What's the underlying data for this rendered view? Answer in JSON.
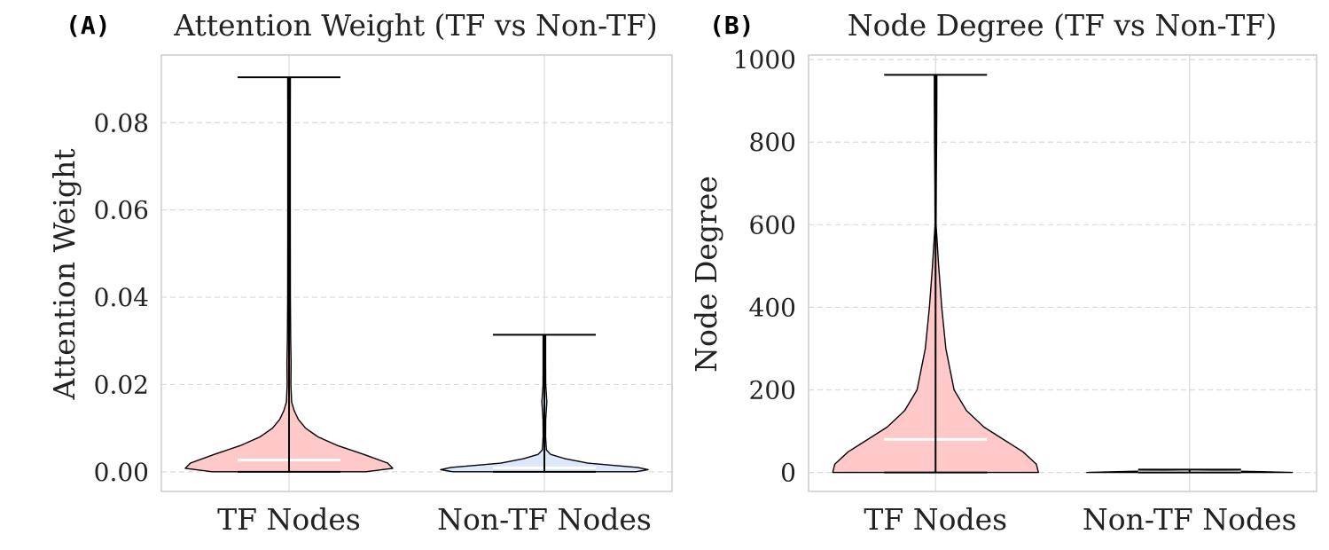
{
  "colors": {
    "tf_fill": "#ffc9c9",
    "non_tf_fill": "#dce9fb",
    "median": "#ffffff",
    "stroke": "#000000",
    "grid": "#d9d9d9",
    "frame": "#cccccc",
    "text": "#222222"
  },
  "chart_data": [
    {
      "panel_label": "(A)",
      "type": "violin",
      "title": "Attention Weight (TF vs Non-TF)",
      "xlabel": "",
      "ylabel": "Attention Weight",
      "categories": [
        "TF Nodes",
        "Non-TF Nodes"
      ],
      "ylim": [
        -0.0045,
        0.0955
      ],
      "yticks": [
        0.0,
        0.02,
        0.04,
        0.06,
        0.08
      ],
      "ytick_labels": [
        "0.00",
        "0.02",
        "0.04",
        "0.06",
        "0.08"
      ],
      "grid": true,
      "series": [
        {
          "name": "TF Nodes",
          "min": 0.0,
          "max": 0.0904,
          "median": 0.0027,
          "density": [
            [
              0.0,
              0.74
            ],
            [
              0.0008,
              1.0
            ],
            [
              0.002,
              0.95
            ],
            [
              0.004,
              0.72
            ],
            [
              0.006,
              0.47
            ],
            [
              0.008,
              0.28
            ],
            [
              0.01,
              0.16
            ],
            [
              0.012,
              0.09
            ],
            [
              0.014,
              0.05
            ],
            [
              0.016,
              0.025
            ],
            [
              0.02,
              0.018
            ],
            [
              0.025,
              0.02
            ],
            [
              0.03,
              0.016
            ],
            [
              0.04,
              0.013
            ],
            [
              0.06,
              0.012
            ],
            [
              0.08,
              0.012
            ],
            [
              0.0904,
              0.013
            ]
          ]
        },
        {
          "name": "Non-TF Nodes",
          "min": 0.0,
          "max": 0.0314,
          "median": 0.0009,
          "density": [
            [
              0.0,
              0.88
            ],
            [
              0.0005,
              1.0
            ],
            [
              0.001,
              0.9
            ],
            [
              0.0015,
              0.65
            ],
            [
              0.002,
              0.42
            ],
            [
              0.003,
              0.2
            ],
            [
              0.004,
              0.06
            ],
            [
              0.005,
              0.02
            ],
            [
              0.008,
              0.012
            ],
            [
              0.012,
              0.013
            ],
            [
              0.016,
              0.024
            ],
            [
              0.02,
              0.013
            ],
            [
              0.025,
              0.012
            ],
            [
              0.0314,
              0.012
            ]
          ]
        }
      ]
    },
    {
      "panel_label": "(B)",
      "type": "violin",
      "title": "Node Degree (TF vs Non-TF)",
      "xlabel": "",
      "ylabel": "Node Degree",
      "categories": [
        "TF Nodes",
        "Non-TF Nodes"
      ],
      "ylim": [
        -46,
        1011
      ],
      "yticks": [
        0,
        200,
        400,
        600,
        800,
        1000
      ],
      "ytick_labels": [
        "0",
        "200",
        "400",
        "600",
        "800",
        "1000"
      ],
      "grid": true,
      "series": [
        {
          "name": "TF Nodes",
          "min": 0,
          "max": 963,
          "median": 80,
          "density": [
            [
              0,
              1.0
            ],
            [
              20,
              0.98
            ],
            [
              50,
              0.85
            ],
            [
              80,
              0.66
            ],
            [
              110,
              0.47
            ],
            [
              150,
              0.3
            ],
            [
              200,
              0.18
            ],
            [
              300,
              0.1
            ],
            [
              400,
              0.06
            ],
            [
              500,
              0.03
            ],
            [
              560,
              0.015
            ],
            [
              600,
              0.005
            ],
            [
              700,
              0.007
            ],
            [
              800,
              0.01
            ],
            [
              900,
              0.012
            ],
            [
              963,
              0.012
            ]
          ]
        },
        {
          "name": "Non-TF Nodes",
          "min": 0,
          "max": 7,
          "median": 1,
          "density": [
            [
              0,
              1.0
            ],
            [
              2,
              0.7
            ],
            [
              4,
              0.3
            ],
            [
              7,
              0.05
            ]
          ]
        }
      ]
    }
  ]
}
